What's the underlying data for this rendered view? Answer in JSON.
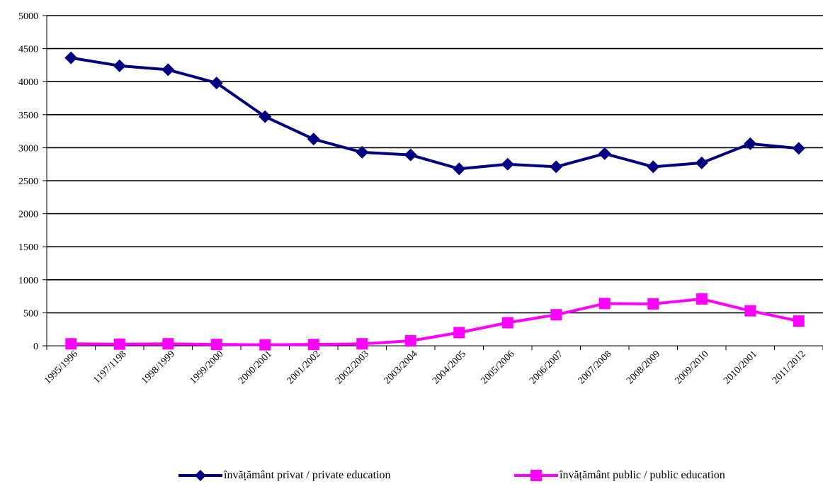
{
  "chart_data": {
    "type": "line",
    "categories": [
      "1995/1996",
      "1197/1198",
      "1998/1999",
      "1999/2000",
      "2000/2001",
      "2001/2002",
      "2002/2003",
      "2003/2004",
      "2004/2005",
      "2005/2006",
      "2006/2007",
      "2007/2008",
      "2008/2009",
      "2009/2010",
      "2010/2001",
      "2011/2012"
    ],
    "series": [
      {
        "name": "învățământ privat / private education",
        "color": "#000080",
        "marker": "diamond",
        "values": [
          4360,
          4240,
          4180,
          3980,
          3470,
          3130,
          2930,
          2890,
          2680,
          2750,
          2710,
          2910,
          2710,
          2770,
          3060,
          2990
        ]
      },
      {
        "name": "învățământ public / public education",
        "color": "#FF00FF",
        "marker": "square",
        "values": [
          30,
          25,
          30,
          20,
          15,
          20,
          30,
          75,
          200,
          350,
          470,
          640,
          635,
          710,
          530,
          375
        ]
      }
    ],
    "ylim": [
      0,
      5000
    ],
    "yticks": [
      0,
      500,
      1000,
      1500,
      2000,
      2500,
      3000,
      3500,
      4000,
      4500,
      5000
    ],
    "grid": true,
    "legend_position": "bottom"
  }
}
